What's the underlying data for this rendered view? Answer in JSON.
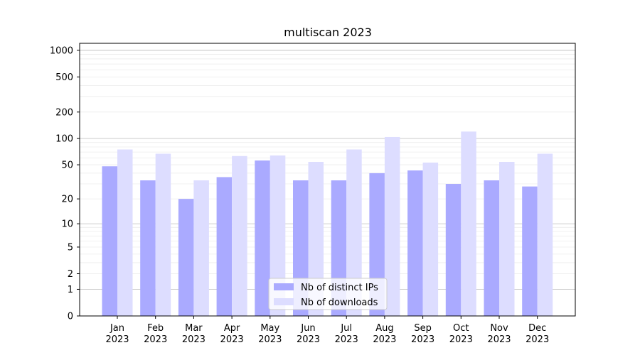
{
  "chart_data": {
    "type": "bar",
    "title": "multiscan 2023",
    "xlabel": "",
    "ylabel": "",
    "y_scale": "symlog",
    "ylim": [
      0,
      1200
    ],
    "y_ticks": [
      "0",
      "1",
      "2",
      "5",
      "10",
      "20",
      "50",
      "100",
      "200",
      "500",
      "1000"
    ],
    "categories": [
      "Jan",
      "Feb",
      "Mar",
      "Apr",
      "May",
      "Jun",
      "Jul",
      "Aug",
      "Sep",
      "Oct",
      "Nov",
      "Dec"
    ],
    "category_year": "2023",
    "grid": true,
    "legend_position": "bottom-center",
    "series": [
      {
        "name": "Nb of distinct IPs",
        "color": "#aaaaff",
        "values": [
          48,
          33,
          20,
          36,
          56,
          33,
          33,
          40,
          43,
          30,
          33,
          28
        ]
      },
      {
        "name": "Nb of downloads",
        "color": "#ddddff",
        "values": [
          75,
          67,
          33,
          63,
          64,
          54,
          75,
          104,
          53,
          120,
          54,
          67
        ]
      }
    ]
  }
}
